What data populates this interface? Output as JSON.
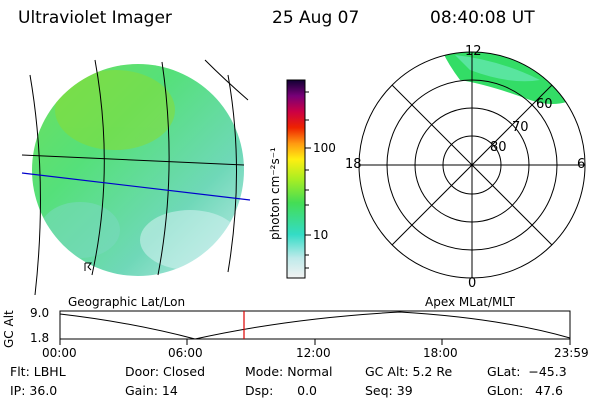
{
  "header": {
    "instrument": "Ultraviolet Imager",
    "date": "25 Aug 07",
    "time": "08:40:08 UT"
  },
  "colorbar": {
    "ticks": [
      "100",
      "10"
    ],
    "unit_label": "photon cm⁻²s⁻¹"
  },
  "left_image": {
    "caption": "Geographic Lat/Lon"
  },
  "polar_plot": {
    "caption": "Apex MLat/MLT",
    "hour_labels": {
      "top": "12",
      "left": "18",
      "right": "6",
      "bottom": "0"
    },
    "lat_labels": [
      "60",
      "70",
      "80"
    ]
  },
  "altitude_plot": {
    "ylabel": "GC Alt",
    "ytick_top": "9.0",
    "ytick_bottom": "1.8",
    "xticks": [
      "00:00",
      "06:00",
      "12:00",
      "18:00",
      "23:59"
    ]
  },
  "status": {
    "flt": "Flt: LBHL",
    "ip": "IP: 36.0",
    "door": "Door: Closed",
    "gain": "Gain: 14",
    "mode": "Mode: Normal",
    "dsp": "Dsp:      0.0",
    "gc_alt": "GC Alt: 5.2 Re",
    "seq": "Seq: 39",
    "glat": "GLat:  −45.3",
    "glon": "GLon:   47.6"
  },
  "colors": {
    "cursor": "#dd0000",
    "lat_line": "#0000cc",
    "aurora_main": "#33dd66"
  }
}
